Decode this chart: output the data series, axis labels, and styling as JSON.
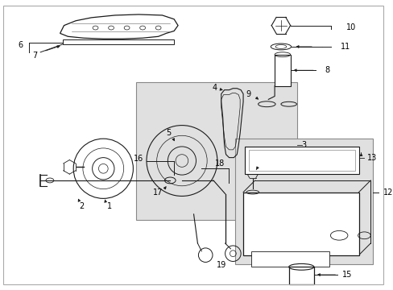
{
  "bg_color": "#ffffff",
  "line_color": "#1a1a1a",
  "box_fill": "#e0e0e0",
  "fig_width": 4.89,
  "fig_height": 3.6,
  "dpi": 100
}
